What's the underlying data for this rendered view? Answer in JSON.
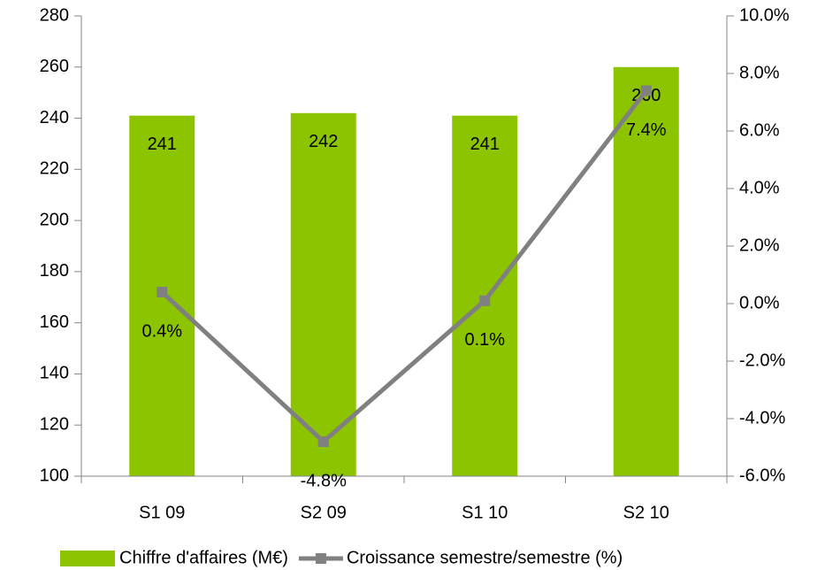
{
  "chart_data": {
    "type": "combo",
    "categories": [
      "S1 09",
      "S2 09",
      "S1 10",
      "S2 10"
    ],
    "series": [
      {
        "name": "Chiffre d'affaires (M€)",
        "type": "bar",
        "color": "#8dc400",
        "values": [
          241,
          242,
          241,
          260
        ]
      },
      {
        "name": "Croissance semestre/semestre (%)",
        "type": "line",
        "axis": "y2",
        "color": "#808080",
        "values": [
          0.4,
          -4.8,
          0.1,
          7.4
        ],
        "value_labels": [
          "0.4%",
          "-4.8%",
          "0.1%",
          "7.4%"
        ]
      }
    ],
    "ylim": [
      100,
      280
    ],
    "yticks": [
      100,
      120,
      140,
      160,
      180,
      200,
      220,
      240,
      260,
      280
    ],
    "y2lim": [
      -6,
      10
    ],
    "y2ticks": [
      {
        "value": -6,
        "label": "-6.0%"
      },
      {
        "value": -4,
        "label": "-4.0%"
      },
      {
        "value": -2,
        "label": "-2.0%"
      },
      {
        "value": 0,
        "label": "0.0%"
      },
      {
        "value": 2,
        "label": "2.0%"
      },
      {
        "value": 4,
        "label": "4.0%"
      },
      {
        "value": 6,
        "label": "6.0%"
      },
      {
        "value": 8,
        "label": "8.0%"
      },
      {
        "value": 10,
        "label": "10.0%"
      }
    ],
    "legend": "bottom"
  }
}
